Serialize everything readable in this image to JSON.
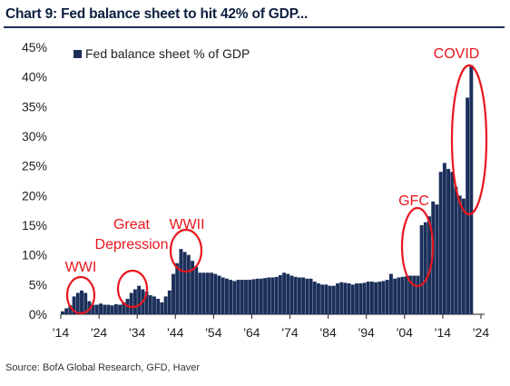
{
  "title": "Chart 9: Fed balance sheet to hit 42% of GDP...",
  "source": "Source: BofA Global Research, GFD, Haver",
  "colors": {
    "bar": "#1b2f5a",
    "annotation": "#e8161d",
    "axis": "#222222",
    "text": "#222222"
  },
  "chart_data": {
    "type": "bar",
    "ylim": [
      0,
      45
    ],
    "yticks": [
      "0%",
      "5%",
      "10%",
      "15%",
      "20%",
      "25%",
      "30%",
      "35%",
      "40%",
      "45%"
    ],
    "xrange": [
      1914,
      2024
    ],
    "xticks": [
      "'14",
      "'24",
      "'34",
      "'44",
      "'54",
      "'64",
      "'74",
      "'84",
      "'94",
      "'04",
      "'14",
      "'24"
    ],
    "legend": {
      "label": "Fed balance sheet % of GDP",
      "position": "top-left"
    },
    "grid": false,
    "series": [
      {
        "name": "Fed balance sheet % of GDP",
        "x": [
          1914,
          1915,
          1916,
          1917,
          1918,
          1919,
          1920,
          1921,
          1922,
          1923,
          1924,
          1925,
          1926,
          1927,
          1928,
          1929,
          1930,
          1931,
          1932,
          1933,
          1934,
          1935,
          1936,
          1937,
          1938,
          1939,
          1940,
          1941,
          1942,
          1943,
          1944,
          1945,
          1946,
          1947,
          1948,
          1949,
          1950,
          1951,
          1952,
          1953,
          1954,
          1955,
          1956,
          1957,
          1958,
          1959,
          1960,
          1961,
          1962,
          1963,
          1964,
          1965,
          1966,
          1967,
          1968,
          1969,
          1970,
          1971,
          1972,
          1973,
          1974,
          1975,
          1976,
          1977,
          1978,
          1979,
          1980,
          1981,
          1982,
          1983,
          1984,
          1985,
          1986,
          1987,
          1988,
          1989,
          1990,
          1991,
          1992,
          1993,
          1994,
          1995,
          1996,
          1997,
          1998,
          1999,
          2000,
          2001,
          2002,
          2003,
          2004,
          2005,
          2006,
          2007,
          2008,
          2009,
          2010,
          2011,
          2012,
          2013,
          2014,
          2015,
          2016,
          2017,
          2018,
          2019,
          2020,
          2021
        ],
        "values": [
          0.5,
          1.0,
          1.5,
          3.0,
          3.6,
          4.0,
          3.6,
          2.2,
          1.6,
          1.6,
          1.8,
          1.6,
          1.6,
          1.5,
          1.7,
          1.6,
          2.0,
          2.6,
          3.6,
          4.2,
          4.8,
          4.2,
          3.8,
          3.2,
          3.0,
          2.6,
          2.0,
          3.0,
          4.0,
          6.8,
          8.6,
          11.0,
          10.5,
          10.0,
          9.0,
          8.0,
          7.0,
          7.0,
          7.0,
          7.0,
          6.8,
          6.5,
          6.2,
          6.0,
          5.8,
          5.6,
          5.8,
          5.8,
          5.8,
          5.8,
          5.9,
          6.0,
          6.0,
          6.1,
          6.2,
          6.2,
          6.3,
          6.6,
          7.0,
          6.8,
          6.5,
          6.3,
          6.2,
          6.2,
          6.0,
          6.0,
          5.5,
          5.2,
          5.0,
          5.0,
          4.8,
          4.8,
          5.2,
          5.4,
          5.3,
          5.2,
          5.0,
          5.2,
          5.2,
          5.3,
          5.5,
          5.5,
          5.4,
          5.5,
          5.6,
          5.8,
          6.8,
          6.0,
          6.2,
          6.3,
          6.4,
          6.5,
          6.5,
          6.5,
          15.0,
          15.5,
          16.5,
          19.0,
          18.5,
          24.0,
          25.5,
          24.5,
          24.0,
          21.5,
          20.0,
          19.5,
          36.5,
          42.0
        ]
      }
    ],
    "annotations": [
      {
        "label": "WWI",
        "x_range": [
          1917,
          1921
        ]
      },
      {
        "label": "Great\nDepression",
        "x_range": [
          1930,
          1936
        ]
      },
      {
        "label": "WWII",
        "x_range": [
          1943,
          1949
        ]
      },
      {
        "label": "GFC",
        "x_range": [
          2007,
          2010
        ]
      },
      {
        "label": "COVID",
        "x_range": [
          2018,
          2021
        ]
      }
    ]
  }
}
